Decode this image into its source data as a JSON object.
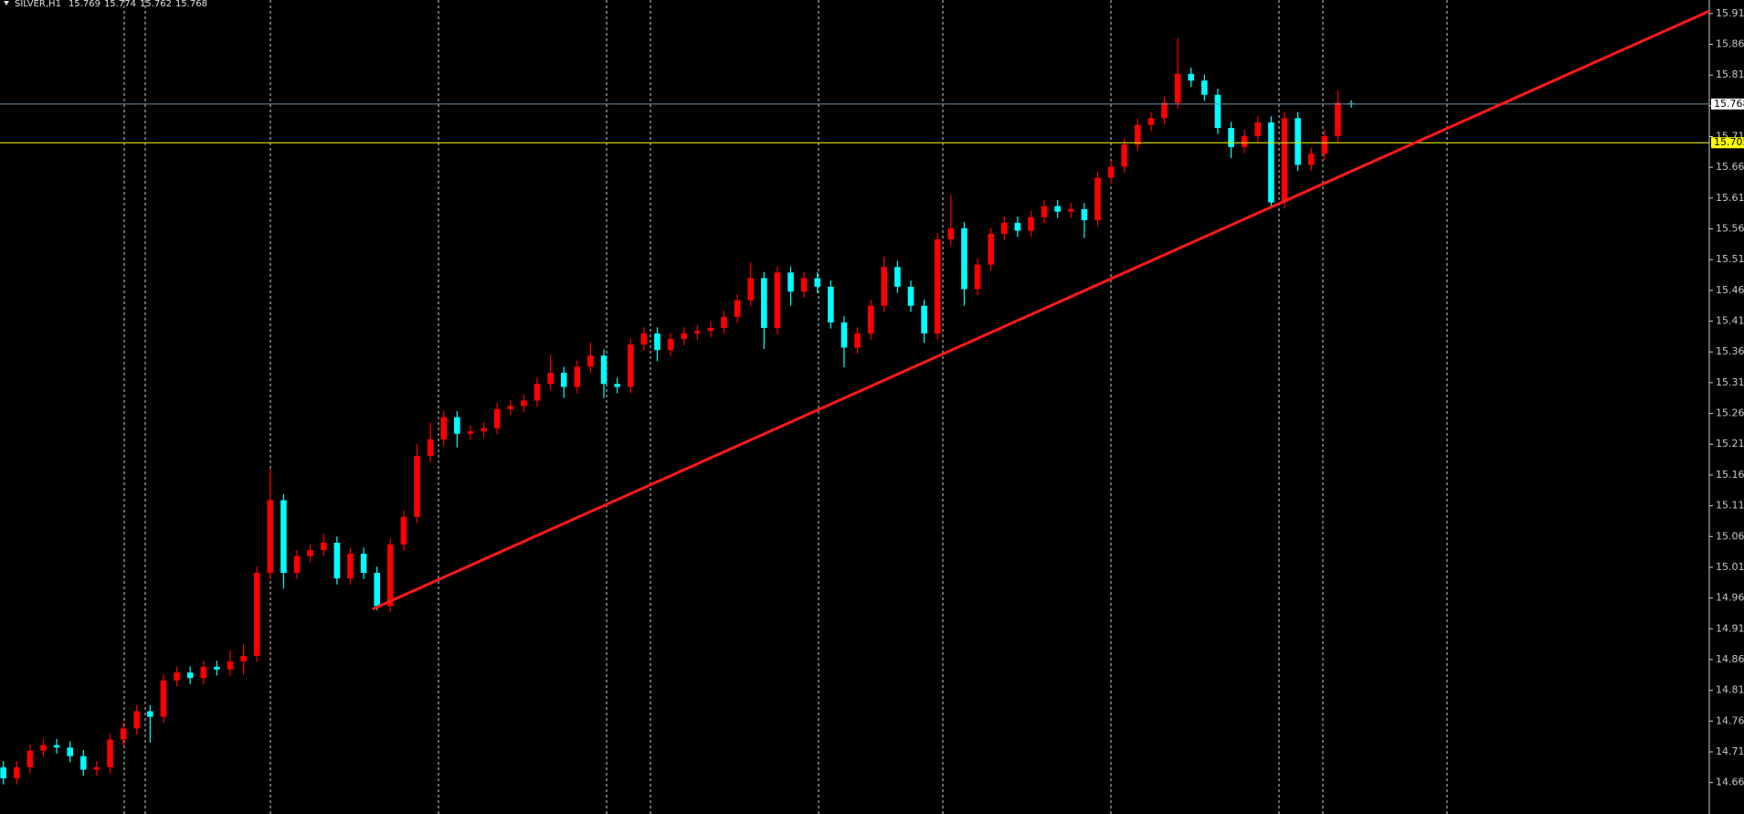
{
  "chart_data": {
    "type": "candlestick",
    "header": {
      "symbol": "SILVER,H1",
      "values": [
        15.769,
        15.774,
        15.762,
        15.768
      ]
    },
    "up_color": "#ff0000",
    "down_color": "#00ffff",
    "xlim": [
      -0.25,
      127.83
    ],
    "ylim": [
      14.614,
      15.937
    ],
    "yticks": [
      15.915,
      15.865,
      15.815,
      15.765,
      15.715,
      15.665,
      15.615,
      15.565,
      15.515,
      15.465,
      15.415,
      15.365,
      15.315,
      15.265,
      15.215,
      15.165,
      15.115,
      15.065,
      15.015,
      14.965,
      14.915,
      14.865,
      14.815,
      14.765,
      14.715,
      14.665
    ],
    "candles": [
      [
        14.69,
        14.7,
        14.662,
        14.672
      ],
      [
        14.672,
        14.7,
        14.662,
        14.69
      ],
      [
        14.69,
        14.727,
        14.68,
        14.717
      ],
      [
        14.717,
        14.736,
        14.707,
        14.726
      ],
      [
        14.726,
        14.736,
        14.712,
        14.722
      ],
      [
        14.722,
        14.732,
        14.698,
        14.708
      ],
      [
        14.708,
        14.718,
        14.676,
        14.686
      ],
      [
        14.686,
        14.7,
        14.676,
        14.69
      ],
      [
        14.69,
        14.745,
        14.68,
        14.735
      ],
      [
        14.735,
        14.763,
        14.725,
        14.753
      ],
      [
        14.753,
        14.791,
        14.743,
        14.781
      ],
      [
        14.781,
        14.791,
        14.73,
        14.772
      ],
      [
        14.772,
        14.841,
        14.762,
        14.831
      ],
      [
        14.831,
        14.854,
        14.821,
        14.844
      ],
      [
        14.844,
        14.854,
        14.825,
        14.835
      ],
      [
        14.835,
        14.863,
        14.825,
        14.853
      ],
      [
        14.853,
        14.863,
        14.839,
        14.849
      ],
      [
        14.849,
        14.88,
        14.839,
        14.862
      ],
      [
        14.862,
        14.89,
        14.84,
        14.871
      ],
      [
        14.871,
        15.016,
        14.861,
        15.006
      ],
      [
        15.006,
        15.175,
        14.996,
        15.124
      ],
      [
        15.124,
        15.134,
        14.98,
        15.006
      ],
      [
        15.006,
        15.043,
        14.996,
        15.033
      ],
      [
        15.033,
        15.053,
        15.023,
        15.043
      ],
      [
        15.043,
        15.07,
        15.033,
        15.055
      ],
      [
        15.055,
        15.065,
        14.987,
        14.997
      ],
      [
        14.997,
        15.047,
        14.987,
        15.037
      ],
      [
        15.037,
        15.047,
        14.996,
        15.006
      ],
      [
        15.006,
        15.016,
        14.945,
        14.952
      ],
      [
        14.952,
        15.062,
        14.942,
        15.052
      ],
      [
        15.052,
        15.107,
        15.042,
        15.097
      ],
      [
        15.097,
        15.215,
        15.087,
        15.196
      ],
      [
        15.196,
        15.25,
        15.186,
        15.223
      ],
      [
        15.223,
        15.269,
        15.213,
        15.259
      ],
      [
        15.259,
        15.269,
        15.21,
        15.232
      ],
      [
        15.232,
        15.246,
        15.222,
        15.236
      ],
      [
        15.236,
        15.251,
        15.226,
        15.241
      ],
      [
        15.241,
        15.282,
        15.231,
        15.272
      ],
      [
        15.272,
        15.287,
        15.262,
        15.277
      ],
      [
        15.277,
        15.296,
        15.267,
        15.286
      ],
      [
        15.286,
        15.323,
        15.276,
        15.313
      ],
      [
        15.313,
        15.36,
        15.303,
        15.331
      ],
      [
        15.331,
        15.341,
        15.29,
        15.308
      ],
      [
        15.308,
        15.351,
        15.298,
        15.341
      ],
      [
        15.341,
        15.38,
        15.331,
        15.359
      ],
      [
        15.359,
        15.369,
        15.29,
        15.313
      ],
      [
        15.313,
        15.323,
        15.298,
        15.308
      ],
      [
        15.308,
        15.387,
        15.298,
        15.377
      ],
      [
        15.377,
        15.405,
        15.367,
        15.395
      ],
      [
        15.395,
        15.405,
        15.35,
        15.368
      ],
      [
        15.368,
        15.396,
        15.358,
        15.386
      ],
      [
        15.386,
        15.405,
        15.376,
        15.395
      ],
      [
        15.395,
        15.409,
        15.385,
        15.399
      ],
      [
        15.399,
        15.414,
        15.389,
        15.404
      ],
      [
        15.404,
        15.432,
        15.394,
        15.422
      ],
      [
        15.422,
        15.459,
        15.412,
        15.449
      ],
      [
        15.449,
        15.51,
        15.439,
        15.485
      ],
      [
        15.485,
        15.495,
        15.37,
        15.404
      ],
      [
        15.404,
        15.504,
        15.394,
        15.494
      ],
      [
        15.494,
        15.504,
        15.44,
        15.463
      ],
      [
        15.463,
        15.495,
        15.453,
        15.485
      ],
      [
        15.485,
        15.495,
        15.461,
        15.471
      ],
      [
        15.471,
        15.481,
        15.403,
        15.413
      ],
      [
        15.413,
        15.423,
        15.34,
        15.372
      ],
      [
        15.372,
        15.405,
        15.362,
        15.395
      ],
      [
        15.395,
        15.45,
        15.385,
        15.44
      ],
      [
        15.44,
        15.52,
        15.43,
        15.503
      ],
      [
        15.503,
        15.513,
        15.461,
        15.471
      ],
      [
        15.471,
        15.481,
        15.43,
        15.44
      ],
      [
        15.44,
        15.45,
        15.38,
        15.395
      ],
      [
        15.395,
        15.558,
        15.385,
        15.548
      ],
      [
        15.548,
        15.62,
        15.538,
        15.566
      ],
      [
        15.566,
        15.576,
        15.44,
        15.467
      ],
      [
        15.467,
        15.517,
        15.457,
        15.507
      ],
      [
        15.507,
        15.567,
        15.497,
        15.557
      ],
      [
        15.557,
        15.585,
        15.547,
        15.575
      ],
      [
        15.575,
        15.585,
        15.552,
        15.562
      ],
      [
        15.562,
        15.594,
        15.552,
        15.584
      ],
      [
        15.584,
        15.612,
        15.574,
        15.602
      ],
      [
        15.602,
        15.612,
        15.583,
        15.593
      ],
      [
        15.593,
        15.607,
        15.583,
        15.597
      ],
      [
        15.597,
        15.607,
        15.55,
        15.579
      ],
      [
        15.579,
        15.658,
        15.569,
        15.648
      ],
      [
        15.648,
        15.676,
        15.638,
        15.666
      ],
      [
        15.666,
        15.712,
        15.656,
        15.702
      ],
      [
        15.702,
        15.744,
        15.692,
        15.734
      ],
      [
        15.734,
        15.755,
        15.724,
        15.745
      ],
      [
        15.745,
        15.78,
        15.735,
        15.77
      ],
      [
        15.77,
        15.875,
        15.76,
        15.817
      ],
      [
        15.817,
        15.827,
        15.796,
        15.806
      ],
      [
        15.806,
        15.816,
        15.773,
        15.783
      ],
      [
        15.783,
        15.793,
        15.719,
        15.729
      ],
      [
        15.729,
        15.739,
        15.68,
        15.698
      ],
      [
        15.698,
        15.726,
        15.688,
        15.716
      ],
      [
        15.716,
        15.748,
        15.706,
        15.738
      ],
      [
        15.738,
        15.748,
        15.598,
        15.608
      ],
      [
        15.608,
        15.755,
        15.598,
        15.745
      ],
      [
        15.745,
        15.755,
        15.659,
        15.669
      ],
      [
        15.669,
        15.697,
        15.659,
        15.687
      ],
      [
        15.687,
        15.726,
        15.677,
        15.716
      ],
      [
        15.716,
        15.79,
        15.706,
        15.77
      ],
      [
        15.769,
        15.774,
        15.762,
        15.768
      ]
    ],
    "price_lines": [
      {
        "value": 15.768,
        "color": "#6f8fa8",
        "label_bg": "#ffffff"
      },
      {
        "value": 15.705,
        "color": "#ffff00",
        "label_bg": "#ffff00"
      }
    ],
    "trendline": {
      "x": [
        27.67,
        127.83
      ],
      "y": [
        14.947,
        15.919
      ],
      "color": "#ff1a1a"
    }
  }
}
